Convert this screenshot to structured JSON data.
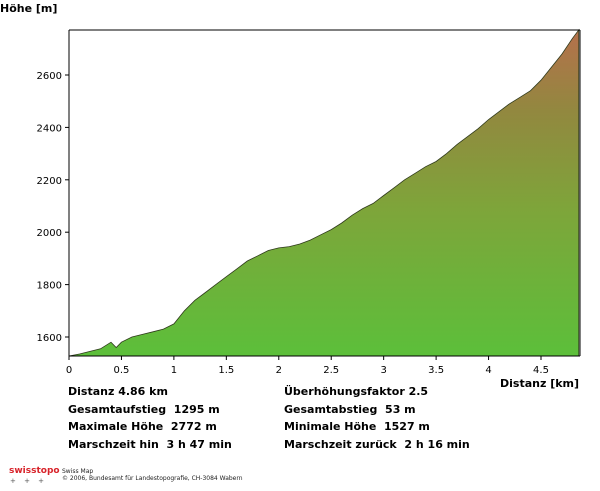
{
  "chart_data": {
    "type": "area",
    "ylabel": "Höhe [m]",
    "xlabel": "Distanz [km]",
    "xlim": [
      0,
      4.86
    ],
    "ylim": [
      1527,
      2772
    ],
    "xticks": [
      "0",
      "0.5",
      "1",
      "1.5",
      "2",
      "2.5",
      "3",
      "3.5",
      "4",
      "4.5"
    ],
    "xtick_values": [
      0,
      0.5,
      1,
      1.5,
      2,
      2.5,
      3,
      3.5,
      4,
      4.5
    ],
    "yticks": [
      "1600",
      "1800",
      "2000",
      "2200",
      "2400",
      "2600"
    ],
    "ytick_values": [
      1600,
      1800,
      2000,
      2200,
      2400,
      2600
    ],
    "grid": false,
    "colors": {
      "low": "#5cbf3a",
      "mid": "#8a8f3e",
      "high": "#b5704c"
    },
    "x": [
      0,
      0.1,
      0.2,
      0.3,
      0.4,
      0.45,
      0.5,
      0.6,
      0.7,
      0.8,
      0.9,
      1.0,
      1.1,
      1.2,
      1.3,
      1.4,
      1.5,
      1.6,
      1.7,
      1.8,
      1.9,
      2.0,
      2.1,
      2.2,
      2.3,
      2.4,
      2.5,
      2.6,
      2.7,
      2.8,
      2.9,
      3.0,
      3.1,
      3.2,
      3.3,
      3.4,
      3.5,
      3.6,
      3.7,
      3.8,
      3.9,
      4.0,
      4.1,
      4.2,
      4.3,
      4.4,
      4.5,
      4.6,
      4.7,
      4.8,
      4.86
    ],
    "y": [
      1527,
      1535,
      1545,
      1555,
      1580,
      1560,
      1580,
      1600,
      1610,
      1620,
      1630,
      1650,
      1700,
      1740,
      1770,
      1800,
      1830,
      1860,
      1890,
      1910,
      1930,
      1940,
      1945,
      1955,
      1970,
      1990,
      2010,
      2035,
      2065,
      2090,
      2110,
      2140,
      2170,
      2200,
      2225,
      2250,
      2270,
      2300,
      2335,
      2365,
      2395,
      2430,
      2460,
      2490,
      2515,
      2540,
      2580,
      2630,
      2680,
      2740,
      2772
    ]
  },
  "stats": {
    "left": [
      "Distanz 4.86 km",
      "Gesamtaufstieg  1295 m",
      "Maximale Höhe  2772 m",
      "Marschzeit hin  3 h 47 min"
    ],
    "right": [
      "Überhöhungsfaktor 2.5",
      "Gesamtabstieg  53 m",
      "Minimale Höhe  1527 m",
      "Marschzeit zurück  2 h 16 min"
    ]
  },
  "footer": {
    "logo_swiss": "swiss",
    "logo_topo": "topo",
    "product": "Swiss Map",
    "copyright": "© 2006, Bundesamt für Landestopografie, CH-3084 Wabern"
  }
}
